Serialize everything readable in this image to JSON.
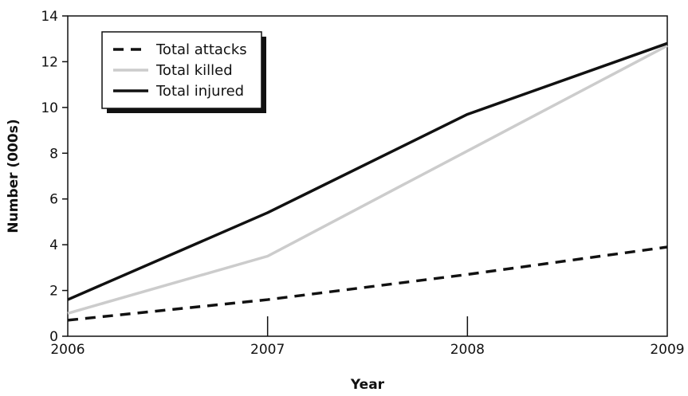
{
  "chart_data": {
    "type": "line",
    "xlabel": "Year",
    "ylabel": "Number (000s)",
    "xlim": [
      2006,
      2009
    ],
    "ylim": [
      0,
      14
    ],
    "x": [
      2006,
      2007,
      2008,
      2009
    ],
    "x_tick_labels": [
      "2006",
      "2007",
      "2008",
      "2009"
    ],
    "y_ticks": [
      0,
      2,
      4,
      6,
      8,
      10,
      12,
      14
    ],
    "y_tick_labels": [
      "0",
      "2",
      "4",
      "6",
      "8",
      "10",
      "12",
      "14"
    ],
    "grid": false,
    "legend_position": "top-left",
    "series": [
      {
        "name": "Total attacks",
        "values": [
          0.7,
          1.6,
          2.7,
          3.9
        ],
        "color": "#111111",
        "style": "dashed"
      },
      {
        "name": "Total killed",
        "values": [
          1.0,
          3.5,
          8.1,
          12.7
        ],
        "color": "#cccccc",
        "style": "solid"
      },
      {
        "name": "Total injured",
        "values": [
          1.6,
          5.4,
          9.7,
          12.8
        ],
        "color": "#111111",
        "style": "solid"
      }
    ]
  }
}
